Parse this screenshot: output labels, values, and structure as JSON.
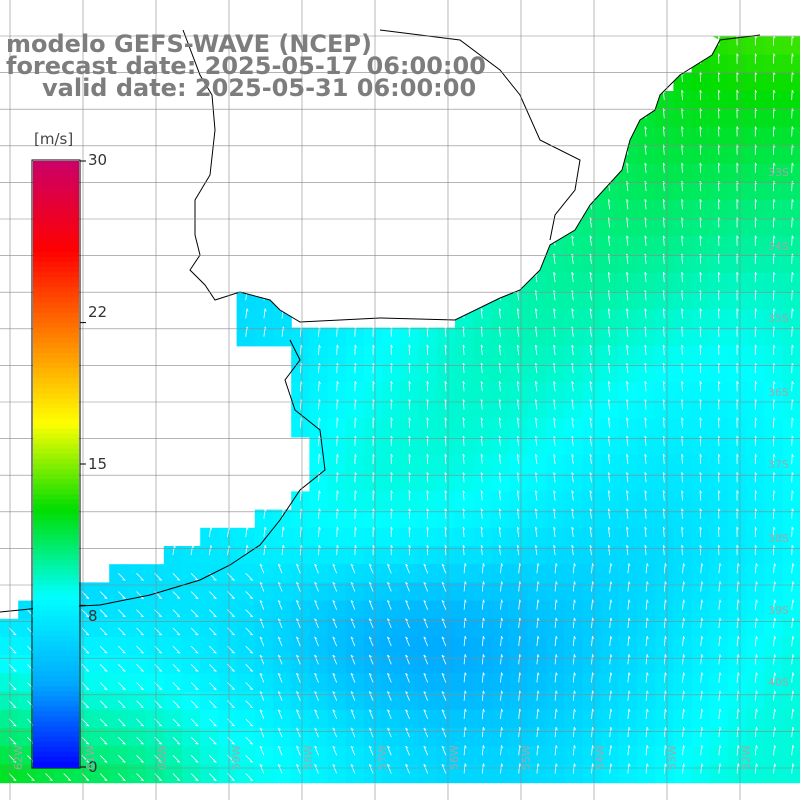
{
  "title": {
    "model": "modelo GEFS-WAVE (NCEP)",
    "forecast": "forecast date: 2025-05-17 06:00:00",
    "valid": "valid date: 2025-05-31 06:00:00"
  },
  "colorbar": {
    "unit": "[m/s]",
    "ticks": [
      "30",
      "22",
      "15",
      "8",
      "0"
    ],
    "tick_values": [
      30,
      22,
      15,
      8,
      0
    ],
    "min": 0,
    "max": 30,
    "colors": [
      "#0000ff",
      "#00aaff",
      "#00ffff",
      "#00dd00",
      "#ffff00",
      "#ff8000",
      "#ff0000",
      "#cc0066"
    ]
  },
  "grid_labels": {
    "lat": [
      "33S",
      "34S",
      "35S",
      "36S",
      "37S",
      "38S",
      "39S",
      "40S"
    ],
    "lon": [
      "62W",
      "61W",
      "60W",
      "59W",
      "58W",
      "57W",
      "56W",
      "55W",
      "54W",
      "53W",
      "52W"
    ]
  },
  "colors": {
    "land": "#ffffff",
    "coast": "#000000",
    "grid": "#888888",
    "title": "#7d7d7d",
    "arrow": "#ffffff"
  }
}
